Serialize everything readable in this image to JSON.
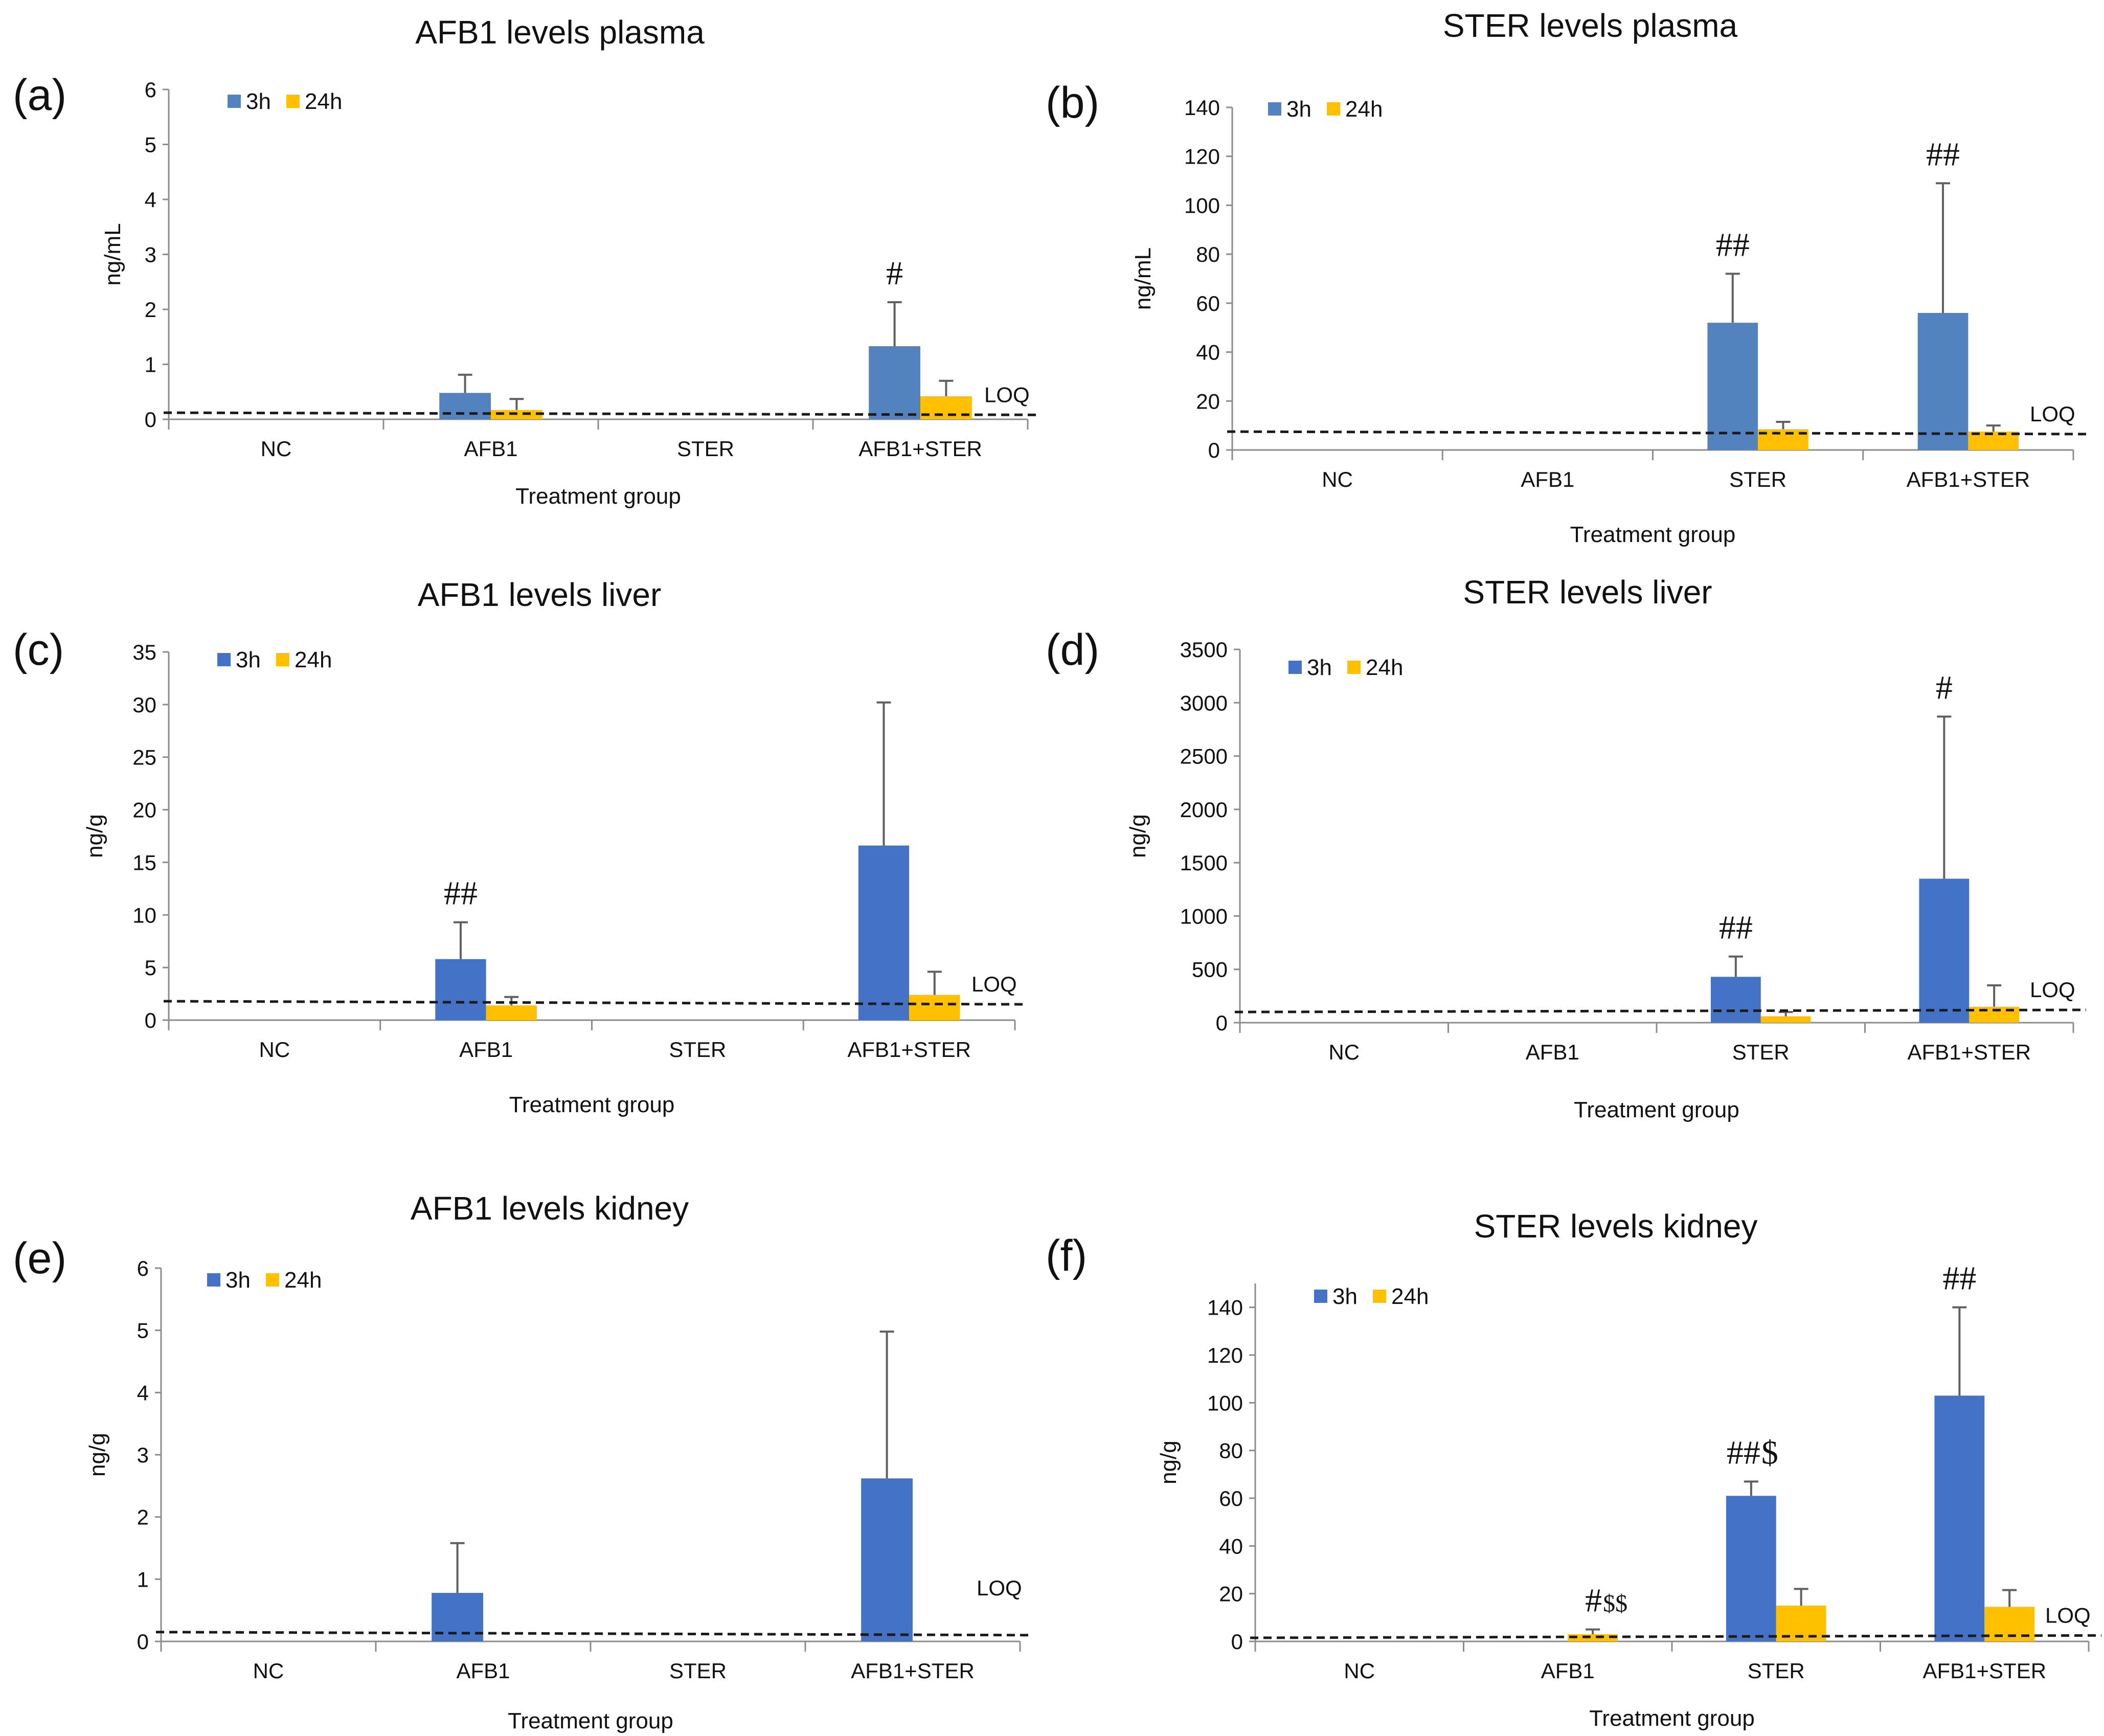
{
  "colors": {
    "blue": "#4472C4",
    "steel_blue": "#5383BE",
    "yellow": "#FFC000",
    "axis": "#8c8c8c",
    "error": "#606060",
    "loq_line": "#1a1a1a"
  },
  "x_axis_label": "Treatment group",
  "categories": [
    "NC",
    "AFB1",
    "STER",
    "AFB1+STER"
  ],
  "legend": [
    "3h",
    "24h"
  ],
  "loq_label": "LOQ",
  "chart_data": [
    {
      "type": "bar",
      "panel": "(a)",
      "title": "AFB1 levels plasma",
      "xlabel": "Treatment group",
      "ylabel": "ng/mL",
      "ylim": [
        0,
        6
      ],
      "yticks": [
        0,
        1,
        2,
        3,
        4,
        5,
        6
      ],
      "categories": [
        "NC",
        "AFB1",
        "STER",
        "AFB1+STER"
      ],
      "series": [
        {
          "name": "3h",
          "color": "#5383BE",
          "values": [
            0,
            0.48,
            0,
            1.33
          ],
          "errors": [
            0,
            0.33,
            0,
            0.8
          ]
        },
        {
          "name": "24h",
          "color": "#FFC000",
          "values": [
            0,
            0.17,
            0,
            0.42
          ],
          "errors": [
            0,
            0.2,
            0,
            0.28
          ]
        }
      ],
      "loq": [
        0.12,
        0.08
      ],
      "annotations": [
        {
          "category": 3,
          "series": 0,
          "text": "#"
        }
      ]
    },
    {
      "type": "bar",
      "panel": "(b)",
      "title": "STER levels plasma",
      "xlabel": "Treatment group",
      "ylabel": "ng/mL",
      "ylim": [
        0,
        140
      ],
      "yticks": [
        0,
        20,
        40,
        60,
        80,
        100,
        120,
        140
      ],
      "categories": [
        "NC",
        "AFB1",
        "STER",
        "AFB1+STER"
      ],
      "series": [
        {
          "name": "3h",
          "color": "#5383BE",
          "values": [
            0,
            0,
            52,
            56
          ],
          "errors": [
            0,
            0,
            20,
            53
          ]
        },
        {
          "name": "24h",
          "color": "#FFC000",
          "values": [
            0,
            0,
            8.5,
            7.5
          ],
          "errors": [
            0,
            0,
            3,
            2.5
          ]
        }
      ],
      "loq": [
        7.5,
        6.5
      ],
      "annotations": [
        {
          "category": 2,
          "series": 0,
          "text": "##"
        },
        {
          "category": 3,
          "series": 0,
          "text": "##"
        }
      ]
    },
    {
      "type": "bar",
      "panel": "(c)",
      "title": "AFB1 levels liver",
      "xlabel": "Treatment group",
      "ylabel": "ng/g",
      "ylim": [
        0,
        35
      ],
      "yticks": [
        0,
        5,
        10,
        15,
        20,
        25,
        30,
        35
      ],
      "categories": [
        "NC",
        "AFB1",
        "STER",
        "AFB1+STER"
      ],
      "series": [
        {
          "name": "3h",
          "color": "#4472C4",
          "values": [
            0,
            5.8,
            0,
            16.6
          ],
          "errors": [
            0,
            3.5,
            0,
            13.6
          ]
        },
        {
          "name": "24h",
          "color": "#FFC000",
          "values": [
            0,
            1.4,
            0,
            2.4
          ],
          "errors": [
            0,
            0.8,
            0,
            2.2
          ]
        }
      ],
      "loq": [
        1.8,
        1.5
      ],
      "annotations": [
        {
          "category": 1,
          "series": 0,
          "text": "##"
        }
      ]
    },
    {
      "type": "bar",
      "panel": "(d)",
      "title": "STER levels liver",
      "xlabel": "Treatment group",
      "ylabel": "ng/g",
      "ylim": [
        0,
        3500
      ],
      "yticks": [
        0,
        500,
        1000,
        1500,
        2000,
        2500,
        3000,
        3500
      ],
      "categories": [
        "NC",
        "AFB1",
        "STER",
        "AFB1+STER"
      ],
      "series": [
        {
          "name": "3h",
          "color": "#4472C4",
          "values": [
            0,
            0,
            430,
            1350
          ],
          "errors": [
            0,
            0,
            190,
            1520
          ]
        },
        {
          "name": "24h",
          "color": "#FFC000",
          "values": [
            0,
            0,
            60,
            150
          ],
          "errors": [
            0,
            0,
            40,
            200
          ]
        }
      ],
      "loq": [
        100,
        120
      ],
      "annotations": [
        {
          "category": 2,
          "series": 0,
          "text": "##"
        },
        {
          "category": 3,
          "series": 0,
          "text": "#"
        }
      ]
    },
    {
      "type": "bar",
      "panel": "(e)",
      "title": "AFB1 levels kidney",
      "xlabel": "Treatment group",
      "ylabel": "ng/g",
      "ylim": [
        0,
        6
      ],
      "yticks": [
        0,
        1,
        2,
        3,
        4,
        5,
        6
      ],
      "categories": [
        "NC",
        "AFB1",
        "STER",
        "AFB1+STER"
      ],
      "series": [
        {
          "name": "3h",
          "color": "#4472C4",
          "values": [
            0,
            0.78,
            0,
            2.62
          ],
          "errors": [
            0,
            0.8,
            0,
            2.36
          ]
        },
        {
          "name": "24h",
          "color": "#FFC000",
          "values": [
            0,
            0,
            0,
            0
          ],
          "errors": [
            0,
            0,
            0,
            0
          ]
        }
      ],
      "loq": [
        0.15,
        0.1
      ],
      "annotations": []
    },
    {
      "type": "bar",
      "panel": "(f)",
      "title": "STER levels kidney",
      "xlabel": "Treatment group",
      "ylabel": "ng/g",
      "ylim": [
        0,
        150
      ],
      "yticks": [
        0,
        20,
        40,
        60,
        80,
        100,
        120,
        140
      ],
      "categories": [
        "NC",
        "AFB1",
        "STER",
        "AFB1+STER"
      ],
      "series": [
        {
          "name": "3h",
          "color": "#4472C4",
          "values": [
            0,
            0,
            61,
            103
          ],
          "errors": [
            0,
            0,
            6,
            37
          ]
        },
        {
          "name": "24h",
          "color": "#FFC000",
          "values": [
            0,
            3,
            15,
            14.5
          ],
          "errors": [
            0,
            2,
            7,
            7
          ]
        }
      ],
      "loq": [
        1.5,
        2.5
      ],
      "annotations": [
        {
          "category": 1,
          "series": 1,
          "text": "#",
          "suffix": "$$"
        },
        {
          "category": 2,
          "series": 0,
          "text": "##",
          "suffix": "$"
        },
        {
          "category": 3,
          "series": 0,
          "text": "##"
        }
      ]
    }
  ]
}
